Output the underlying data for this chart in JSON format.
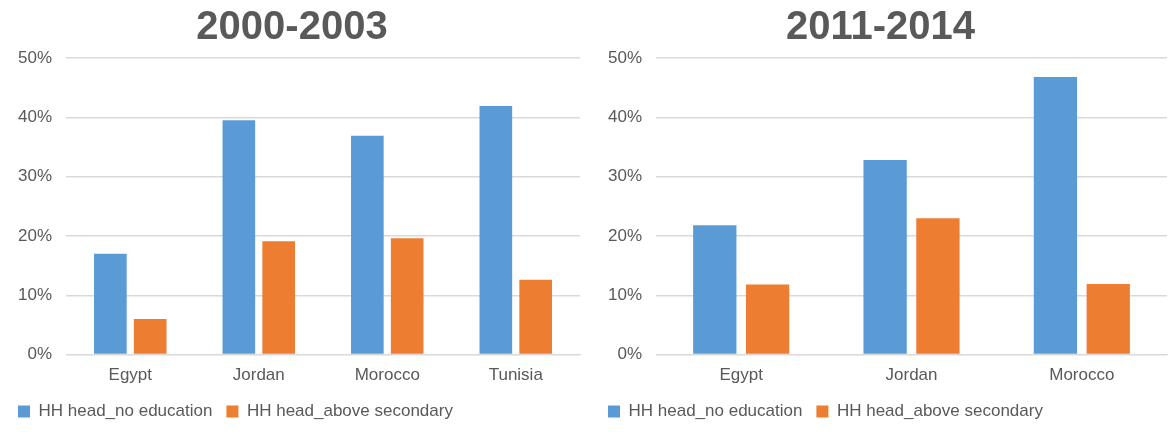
{
  "chart_data": [
    {
      "type": "bar",
      "title": "2000-2003",
      "categories": [
        "Egypt",
        "Jordan",
        "Morocco",
        "Tunisia"
      ],
      "series": [
        {
          "name": "HH head_no education",
          "color": "#5b9bd5",
          "values": [
            17.0,
            39.5,
            36.9,
            41.9
          ]
        },
        {
          "name": "HH head_above secondary",
          "color": "#ed7d31",
          "values": [
            6.0,
            19.1,
            19.6,
            12.6
          ]
        }
      ],
      "ylim": [
        0,
        50
      ],
      "yticks": [
        {
          "value": 0,
          "label": "0%"
        },
        {
          "value": 10,
          "label": "10%"
        },
        {
          "value": 20,
          "label": "20%"
        },
        {
          "value": 30,
          "label": "30%"
        },
        {
          "value": 40,
          "label": "40%"
        },
        {
          "value": 50,
          "label": "50%"
        }
      ],
      "grid": "y",
      "legend": "bottom left"
    },
    {
      "type": "bar",
      "title": "2011-2014",
      "categories": [
        "Egypt",
        "Jordan",
        "Morocco"
      ],
      "series": [
        {
          "name": "HH head_no education",
          "color": "#5b9bd5",
          "values": [
            21.8,
            32.8,
            46.8
          ]
        },
        {
          "name": "HH head_above secondary",
          "color": "#ed7d31",
          "values": [
            11.8,
            23.0,
            11.9
          ]
        }
      ],
      "ylim": [
        0,
        50
      ],
      "yticks": [
        {
          "value": 0,
          "label": "0%"
        },
        {
          "value": 10,
          "label": "10%"
        },
        {
          "value": 20,
          "label": "20%"
        },
        {
          "value": 30,
          "label": "30%"
        },
        {
          "value": 40,
          "label": "40%"
        },
        {
          "value": 50,
          "label": "50%"
        }
      ],
      "grid": "y",
      "legend": "bottom left"
    }
  ]
}
